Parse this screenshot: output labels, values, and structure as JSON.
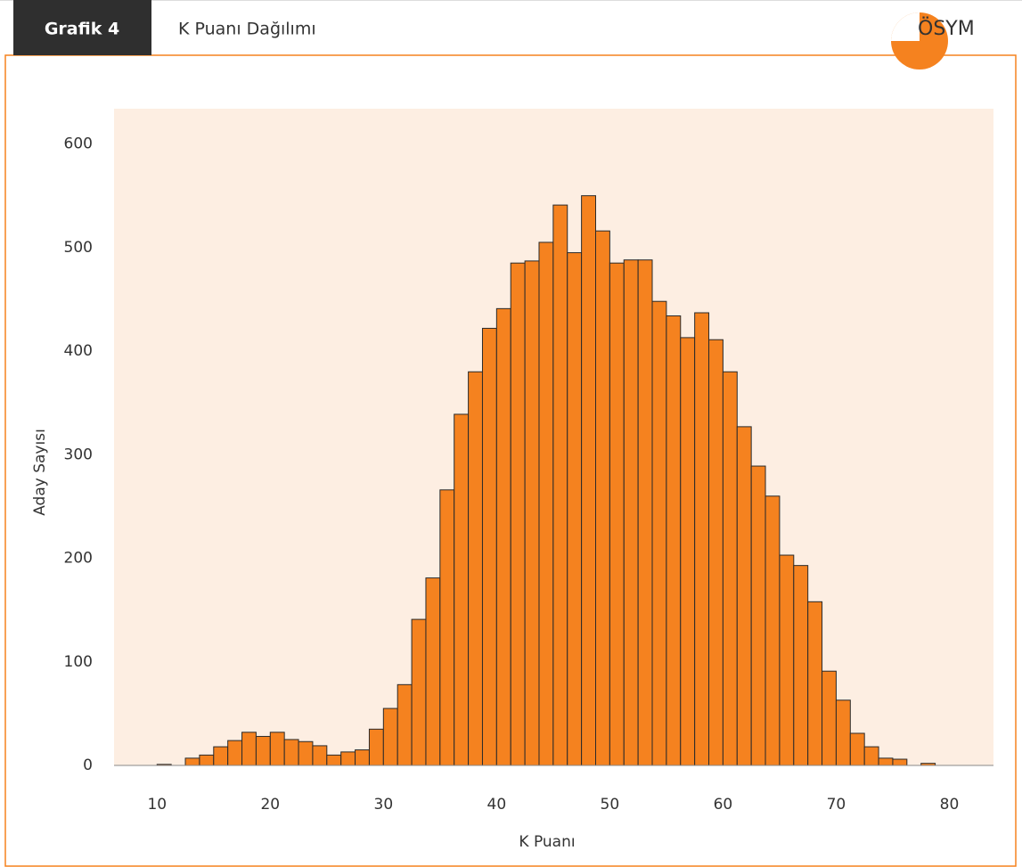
{
  "header": {
    "tag": "Grafik 4",
    "title": "K Puanı Dağılımı",
    "logo": "ÖSYM"
  },
  "chart_data": {
    "type": "histogram",
    "x_label": "K Puanı",
    "y_label": "Aday Sayısı",
    "bins": [
      10,
      11.25,
      12.5,
      13.75,
      15,
      16.25,
      17.5,
      18.75,
      20,
      21.25,
      22.5,
      23.75,
      25,
      26.25,
      27.5,
      28.75,
      30,
      31.25,
      32.5,
      33.75,
      35,
      36.25,
      37.5,
      38.75,
      40,
      41.25,
      42.5,
      43.75,
      45,
      46.25,
      47.5,
      48.75,
      50,
      51.25,
      52.5,
      53.75,
      55,
      56.25,
      57.5,
      58.75,
      60,
      61.25,
      62.5,
      63.75,
      65,
      66.25,
      67.5,
      68.75,
      70,
      71.25,
      72.5,
      73.75,
      75,
      76.25,
      77.5,
      78.75
    ],
    "values": [
      1,
      0,
      7,
      10,
      18,
      24,
      32,
      28,
      32,
      25,
      23,
      19,
      10,
      13,
      15,
      35,
      55,
      78,
      141,
      181,
      266,
      339,
      380,
      422,
      441,
      485,
      487,
      505,
      541,
      495,
      550,
      516,
      485,
      488,
      488,
      448,
      434,
      413,
      437,
      411,
      380,
      327,
      289,
      260,
      203,
      193,
      158,
      91,
      63,
      31,
      18,
      7,
      6,
      0,
      2
    ],
    "color": "#f5821f",
    "edge_color": "#2a2a2a",
    "background": "#fdeee2",
    "xlim": [
      6.2,
      83.9
    ],
    "ylim": [
      0,
      634
    ],
    "xticks": [
      10,
      20,
      30,
      40,
      50,
      60,
      70,
      80
    ],
    "yticks": [
      0,
      100,
      200,
      300,
      400,
      500,
      600
    ],
    "grid": false
  }
}
